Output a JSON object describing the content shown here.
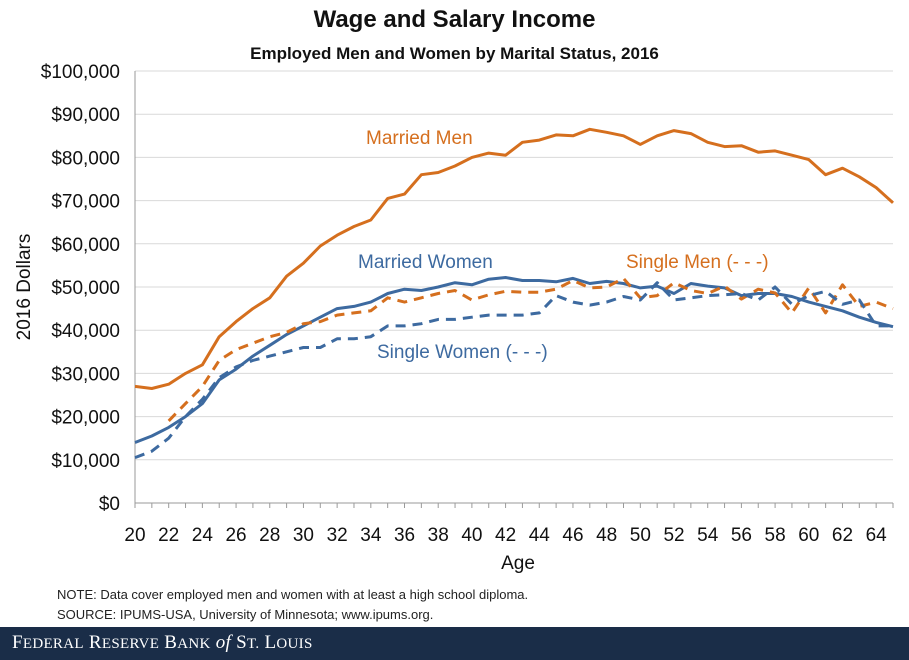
{
  "chart_data": {
    "type": "line",
    "title": "Wage and Salary Income",
    "subtitle": "Employed Men and Women by Marital Status, 2016",
    "xlabel": "Age",
    "ylabel": "2016 Dollars",
    "xlim": [
      20,
      65
    ],
    "ylim": [
      0,
      100000
    ],
    "x_ticks": [
      20,
      22,
      24,
      26,
      28,
      30,
      32,
      34,
      36,
      38,
      40,
      42,
      44,
      46,
      48,
      50,
      52,
      54,
      56,
      58,
      60,
      62,
      64
    ],
    "y_ticks": [
      0,
      10000,
      20000,
      30000,
      40000,
      50000,
      60000,
      70000,
      80000,
      90000,
      100000
    ],
    "y_tick_labels": [
      "$0",
      "$10,000",
      "$20,000",
      "$30,000",
      "$40,000",
      "$50,000",
      "$60,000",
      "$70,000",
      "$80,000",
      "$90,000",
      "$100,000"
    ],
    "grid": "horizontal",
    "x": [
      20,
      21,
      22,
      23,
      24,
      25,
      26,
      27,
      28,
      29,
      30,
      31,
      32,
      33,
      34,
      35,
      36,
      37,
      38,
      39,
      40,
      41,
      42,
      43,
      44,
      45,
      46,
      47,
      48,
      49,
      50,
      51,
      52,
      53,
      54,
      55,
      56,
      57,
      58,
      59,
      60,
      61,
      62,
      63,
      64,
      65
    ],
    "series": [
      {
        "name": "Married Men",
        "label": "Married Men",
        "color": "#d56f1e",
        "dash": false,
        "values": [
          27000,
          26500,
          27500,
          30000,
          32000,
          38500,
          42000,
          45000,
          47500,
          52500,
          55500,
          59500,
          62000,
          64000,
          65500,
          70500,
          71500,
          76000,
          76500,
          78000,
          80000,
          81000,
          80500,
          83500,
          84000,
          85200,
          85000,
          86500,
          85800,
          85000,
          83000,
          85000,
          86200,
          85500,
          83500,
          82500,
          82700,
          81200,
          81500,
          80500,
          79500,
          76000,
          77500,
          75500,
          73000,
          69500
        ]
      },
      {
        "name": "Married Women",
        "label": "Married Women",
        "color": "#3d6aa0",
        "dash": false,
        "values": [
          14000,
          15500,
          17500,
          20000,
          23000,
          28500,
          31000,
          34000,
          36500,
          39000,
          41000,
          43000,
          45000,
          45500,
          46500,
          48500,
          49500,
          49200,
          50000,
          51000,
          50500,
          51800,
          52200,
          51500,
          51500,
          51200,
          52000,
          50800,
          51300,
          50800,
          49800,
          50200,
          48500,
          50800,
          50200,
          49800,
          48000,
          48500,
          48500,
          47800,
          46500,
          45500,
          44500,
          43000,
          41800,
          40800
        ]
      },
      {
        "name": "Single Men (- - -)",
        "label": "Single Men (- - -)",
        "color": "#d56f1e",
        "dash": true,
        "values": [
          null,
          null,
          19000,
          23000,
          27000,
          33000,
          35500,
          37000,
          38500,
          39500,
          41500,
          42000,
          43500,
          44000,
          44500,
          47500,
          46500,
          47500,
          48500,
          49200,
          47000,
          48200,
          49000,
          48800,
          48800,
          49500,
          51500,
          49800,
          50000,
          52000,
          47500,
          48000,
          51000,
          49200,
          48500,
          50200,
          47200,
          49500,
          48600,
          44000,
          49800,
          44000,
          50500,
          45500,
          46500,
          45000
        ]
      },
      {
        "name": "Single Women (- - -)",
        "label": "Single Women (- - -)",
        "color": "#3d6aa0",
        "dash": true,
        "values": [
          10500,
          12000,
          15000,
          20000,
          24000,
          29000,
          31500,
          33000,
          34000,
          35000,
          36000,
          36000,
          38000,
          38000,
          38500,
          41000,
          41000,
          41500,
          42500,
          42500,
          43000,
          43500,
          43500,
          43500,
          44000,
          48000,
          46500,
          45800,
          46500,
          47800,
          47000,
          51000,
          47000,
          47500,
          48000,
          48200,
          48500,
          47000,
          50000,
          46000,
          48000,
          49000,
          46000,
          47000,
          41000,
          41000
        ]
      }
    ],
    "annotations": [
      {
        "text": "Married Men",
        "series": 0
      },
      {
        "text": "Married Women",
        "series": 1
      },
      {
        "text": "Single Men (- - -)",
        "series": 2
      },
      {
        "text": "Single Women (- - -)",
        "series": 3
      }
    ]
  },
  "notes": {
    "note": "NOTE: Data cover employed men and women with at least a high school diploma.",
    "source": "SOURCE: IPUMS-USA, University of Minnesota; www.ipums.org."
  },
  "footer": {
    "text": "Federal Reserve Bank of St. Louis"
  }
}
